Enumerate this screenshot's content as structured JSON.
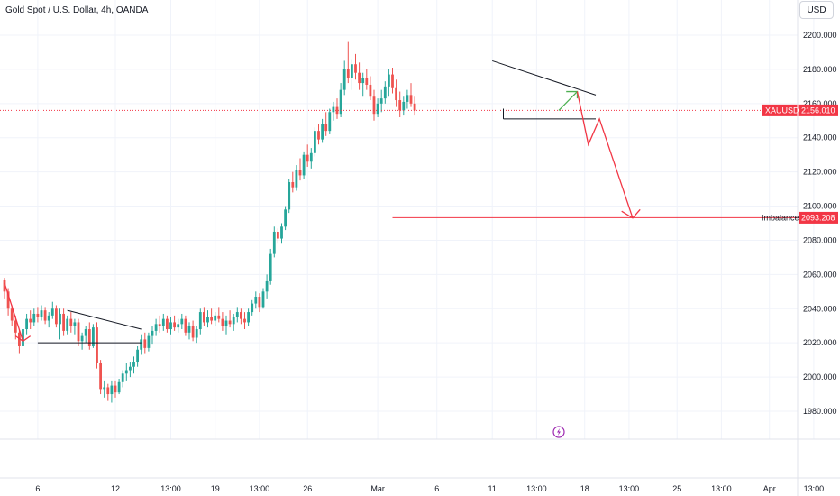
{
  "header": {
    "title": "Gold Spot / U.S. Dollar, 4h, OANDA",
    "currency_button": "USD"
  },
  "colors": {
    "up": "#26a69a",
    "down": "#ef5350",
    "arrow_red": "#f23645",
    "arrow_green": "#4caf50",
    "grid": "#f0f3fa",
    "pattern_line": "#131722",
    "price_tag": "#f23645",
    "event_icon": "#9c27b0"
  },
  "chart_data": {
    "type": "candlestick",
    "y_axis": {
      "range": [
        1962,
        2210
      ],
      "ticks": [
        "2200.000",
        "2180.000",
        "2160.000",
        "2140.000",
        "2120.000",
        "2100.000",
        "2080.000",
        "2060.000",
        "2040.000",
        "2020.000",
        "2000.000",
        "1980.000"
      ]
    },
    "x_axis": {
      "ticks": [
        {
          "label": "6",
          "index": 9
        },
        {
          "label": "12",
          "index": 30
        },
        {
          "label": "13:00",
          "index": 45
        },
        {
          "label": "19",
          "index": 57
        },
        {
          "label": "13:00",
          "index": 69
        },
        {
          "label": "26",
          "index": 82
        },
        {
          "label": "Mar",
          "index": 101
        },
        {
          "label": "6",
          "index": 117
        },
        {
          "label": "11",
          "index": 132
        },
        {
          "label": "13:00",
          "index": 144
        },
        {
          "label": "18",
          "index": 157
        },
        {
          "label": "13:00",
          "index": 169
        },
        {
          "label": "25",
          "index": 182
        },
        {
          "label": "13:00",
          "index": 194
        },
        {
          "label": "Apr",
          "index": 207
        },
        {
          "label": "13:00",
          "index": 219
        }
      ]
    },
    "candles": [
      [
        2057,
        2058,
        2046,
        2050
      ],
      [
        2050,
        2052,
        2036,
        2040
      ],
      [
        2040,
        2042,
        2030,
        2033
      ],
      [
        2033,
        2036,
        2022,
        2026
      ],
      [
        2026,
        2028,
        2014,
        2018
      ],
      [
        2018,
        2030,
        2016,
        2028
      ],
      [
        2028,
        2037,
        2025,
        2034
      ],
      [
        2034,
        2039,
        2028,
        2032
      ],
      [
        2032,
        2040,
        2030,
        2037
      ],
      [
        2037,
        2041,
        2032,
        2035
      ],
      [
        2035,
        2042,
        2033,
        2039
      ],
      [
        2039,
        2041,
        2031,
        2033
      ],
      [
        2033,
        2038,
        2029,
        2036
      ],
      [
        2036,
        2044,
        2034,
        2040
      ],
      [
        2040,
        2042,
        2029,
        2031
      ],
      [
        2031,
        2040,
        2022,
        2037
      ],
      [
        2037,
        2040,
        2024,
        2027
      ],
      [
        2027,
        2036,
        2025,
        2034
      ],
      [
        2034,
        2038,
        2026,
        2030
      ],
      [
        2030,
        2034,
        2025,
        2032
      ],
      [
        2032,
        2034,
        2018,
        2021
      ],
      [
        2021,
        2026,
        2016,
        2024
      ],
      [
        2024,
        2030,
        2020,
        2028
      ],
      [
        2028,
        2032,
        2016,
        2018
      ],
      [
        2018,
        2031,
        2017,
        2029
      ],
      [
        2029,
        2032,
        2005,
        2008
      ],
      [
        2008,
        2010,
        1990,
        1993
      ],
      [
        1993,
        1998,
        1988,
        1994
      ],
      [
        1994,
        1996,
        1986,
        1990
      ],
      [
        1990,
        1998,
        1985,
        1995
      ],
      [
        1995,
        1998,
        1988,
        1991
      ],
      [
        1991,
        1999,
        1990,
        1997
      ],
      [
        1997,
        2004,
        1994,
        2002
      ],
      [
        2002,
        2008,
        1998,
        2004
      ],
      [
        2004,
        2009,
        2000,
        2006
      ],
      [
        2006,
        2012,
        2002,
        2009
      ],
      [
        2009,
        2018,
        2006,
        2016
      ],
      [
        2016,
        2025,
        2013,
        2022
      ],
      [
        2022,
        2026,
        2014,
        2017
      ],
      [
        2017,
        2026,
        2015,
        2024
      ],
      [
        2024,
        2030,
        2019,
        2027
      ],
      [
        2027,
        2034,
        2024,
        2031
      ],
      [
        2031,
        2036,
        2026,
        2030
      ],
      [
        2030,
        2037,
        2027,
        2034
      ],
      [
        2034,
        2036,
        2026,
        2028
      ],
      [
        2028,
        2035,
        2025,
        2032
      ],
      [
        2032,
        2036,
        2027,
        2029
      ],
      [
        2029,
        2034,
        2026,
        2031
      ],
      [
        2031,
        2037,
        2028,
        2034
      ],
      [
        2034,
        2036,
        2024,
        2026
      ],
      [
        2026,
        2032,
        2022,
        2030
      ],
      [
        2030,
        2033,
        2021,
        2023
      ],
      [
        2023,
        2030,
        2020,
        2028
      ],
      [
        2028,
        2040,
        2025,
        2038
      ],
      [
        2038,
        2041,
        2030,
        2032
      ],
      [
        2032,
        2039,
        2029,
        2035
      ],
      [
        2035,
        2040,
        2031,
        2033
      ],
      [
        2033,
        2038,
        2030,
        2036
      ],
      [
        2036,
        2041,
        2032,
        2034
      ],
      [
        2034,
        2038,
        2027,
        2030
      ],
      [
        2030,
        2036,
        2025,
        2033
      ],
      [
        2033,
        2039,
        2029,
        2031
      ],
      [
        2031,
        2037,
        2027,
        2035
      ],
      [
        2035,
        2041,
        2032,
        2038
      ],
      [
        2038,
        2040,
        2031,
        2034
      ],
      [
        2034,
        2038,
        2028,
        2032
      ],
      [
        2032,
        2040,
        2030,
        2038
      ],
      [
        2038,
        2045,
        2036,
        2043
      ],
      [
        2043,
        2050,
        2040,
        2047
      ],
      [
        2047,
        2049,
        2038,
        2041
      ],
      [
        2041,
        2052,
        2040,
        2050
      ],
      [
        2050,
        2060,
        2046,
        2056
      ],
      [
        2056,
        2075,
        2054,
        2072
      ],
      [
        2072,
        2088,
        2070,
        2085
      ],
      [
        2085,
        2087,
        2078,
        2081
      ],
      [
        2081,
        2090,
        2078,
        2088
      ],
      [
        2088,
        2100,
        2086,
        2098
      ],
      [
        2098,
        2116,
        2096,
        2114
      ],
      [
        2114,
        2120,
        2108,
        2111
      ],
      [
        2111,
        2124,
        2109,
        2121
      ],
      [
        2121,
        2128,
        2115,
        2118
      ],
      [
        2118,
        2132,
        2116,
        2130
      ],
      [
        2130,
        2136,
        2123,
        2126
      ],
      [
        2126,
        2134,
        2122,
        2131
      ],
      [
        2131,
        2146,
        2129,
        2144
      ],
      [
        2144,
        2148,
        2136,
        2139
      ],
      [
        2139,
        2151,
        2137,
        2148
      ],
      [
        2148,
        2155,
        2141,
        2144
      ],
      [
        2144,
        2157,
        2142,
        2155
      ],
      [
        2155,
        2161,
        2150,
        2158
      ],
      [
        2158,
        2163,
        2151,
        2154
      ],
      [
        2154,
        2172,
        2152,
        2168
      ],
      [
        2168,
        2185,
        2165,
        2180
      ],
      [
        2180,
        2196,
        2172,
        2175
      ],
      [
        2175,
        2186,
        2168,
        2183
      ],
      [
        2183,
        2189,
        2174,
        2178
      ],
      [
        2178,
        2184,
        2168,
        2172
      ],
      [
        2172,
        2178,
        2164,
        2175
      ],
      [
        2175,
        2180,
        2168,
        2171
      ],
      [
        2171,
        2176,
        2162,
        2164
      ],
      [
        2164,
        2168,
        2150,
        2154
      ],
      [
        2154,
        2163,
        2152,
        2160
      ],
      [
        2160,
        2168,
        2155,
        2163
      ],
      [
        2163,
        2173,
        2160,
        2170
      ],
      [
        2170,
        2180,
        2164,
        2177
      ],
      [
        2177,
        2181,
        2166,
        2169
      ],
      [
        2169,
        2174,
        2158,
        2162
      ],
      [
        2162,
        2167,
        2152,
        2156
      ],
      [
        2156,
        2164,
        2153,
        2161
      ],
      [
        2161,
        2168,
        2157,
        2165
      ],
      [
        2165,
        2172,
        2158,
        2160
      ],
      [
        2160,
        2164,
        2153,
        2156
      ]
    ],
    "current_price": {
      "label": "XAUUSD",
      "value": "2156.010",
      "price": 2156.01
    },
    "imbalance": {
      "label": "Imbalance",
      "value": "2093.208",
      "price": 2093.208
    }
  }
}
